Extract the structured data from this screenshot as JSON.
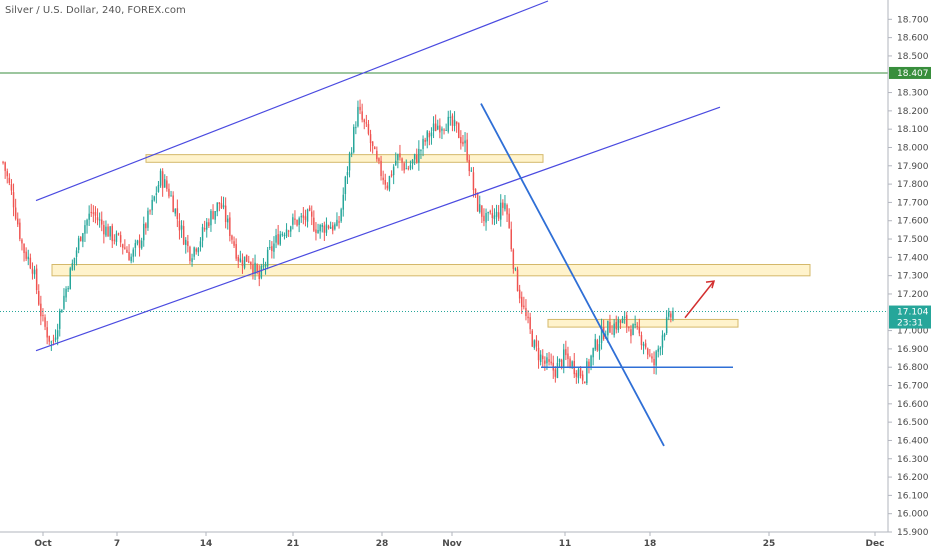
{
  "chart_data": {
    "type": "candlestick",
    "title": "Silver / U.S. Dollar, 240, FOREX.com",
    "symbol": "Silver / U.S. Dollar",
    "timeframe": "240",
    "source": "FOREX.com",
    "ylim": [
      15.9,
      18.8
    ],
    "y_ticks": [
      "18.700",
      "18.600",
      "18.500",
      "18.300",
      "18.200",
      "18.100",
      "18.000",
      "17.900",
      "17.800",
      "17.700",
      "17.600",
      "17.500",
      "17.400",
      "17.300",
      "17.200",
      "17.000",
      "16.900",
      "16.800",
      "16.700",
      "16.600",
      "16.500",
      "16.400",
      "16.300",
      "16.200",
      "16.100",
      "16.000",
      "15.900"
    ],
    "x_ticks": [
      "Oct",
      "7",
      "14",
      "21",
      "28",
      "Nov",
      "11",
      "18",
      "25",
      "Dec"
    ],
    "price_tag": {
      "label": "17.104",
      "value": 17.104,
      "color": "#26a69a"
    },
    "countdown_tag": {
      "label": "23:31",
      "color": "#26a69a"
    },
    "horizontal_line_tag": {
      "label": "18.407",
      "value": 18.407,
      "color": "#388e3c"
    },
    "colors": {
      "up": "#26a69a",
      "down": "#ef5350",
      "trendline": "#4a4ae0",
      "zone_fill": "#fff3cc",
      "zone_border": "#d4b86a",
      "arrow": "#d32f2f",
      "falling_line": "#2f6fd6"
    },
    "price_path": [
      17.92,
      17.72,
      17.45,
      17.35,
      17.05,
      16.92,
      17.15,
      17.35,
      17.55,
      17.65,
      17.58,
      17.52,
      17.48,
      17.4,
      17.5,
      17.66,
      17.84,
      17.74,
      17.56,
      17.42,
      17.5,
      17.62,
      17.7,
      17.55,
      17.38,
      17.4,
      17.28,
      17.42,
      17.52,
      17.58,
      17.6,
      17.62,
      17.55,
      17.58,
      17.56,
      17.9,
      18.2,
      18.08,
      17.9,
      17.8,
      17.95,
      17.88,
      17.95,
      18.05,
      18.12,
      18.14,
      18.1,
      18.0,
      17.7,
      17.6,
      17.62,
      17.7,
      17.3,
      17.08,
      16.9,
      16.82,
      16.78,
      16.86,
      16.8,
      16.75,
      16.9,
      17.0,
      17.03,
      17.05,
      17.0,
      16.95,
      16.8,
      17.0,
      17.1
    ],
    "zones": [
      {
        "low": 17.93,
        "high": 17.95
      },
      {
        "low": 17.31,
        "high": 17.35
      },
      {
        "low": 17.03,
        "high": 17.05
      }
    ],
    "support_line": 16.8
  }
}
